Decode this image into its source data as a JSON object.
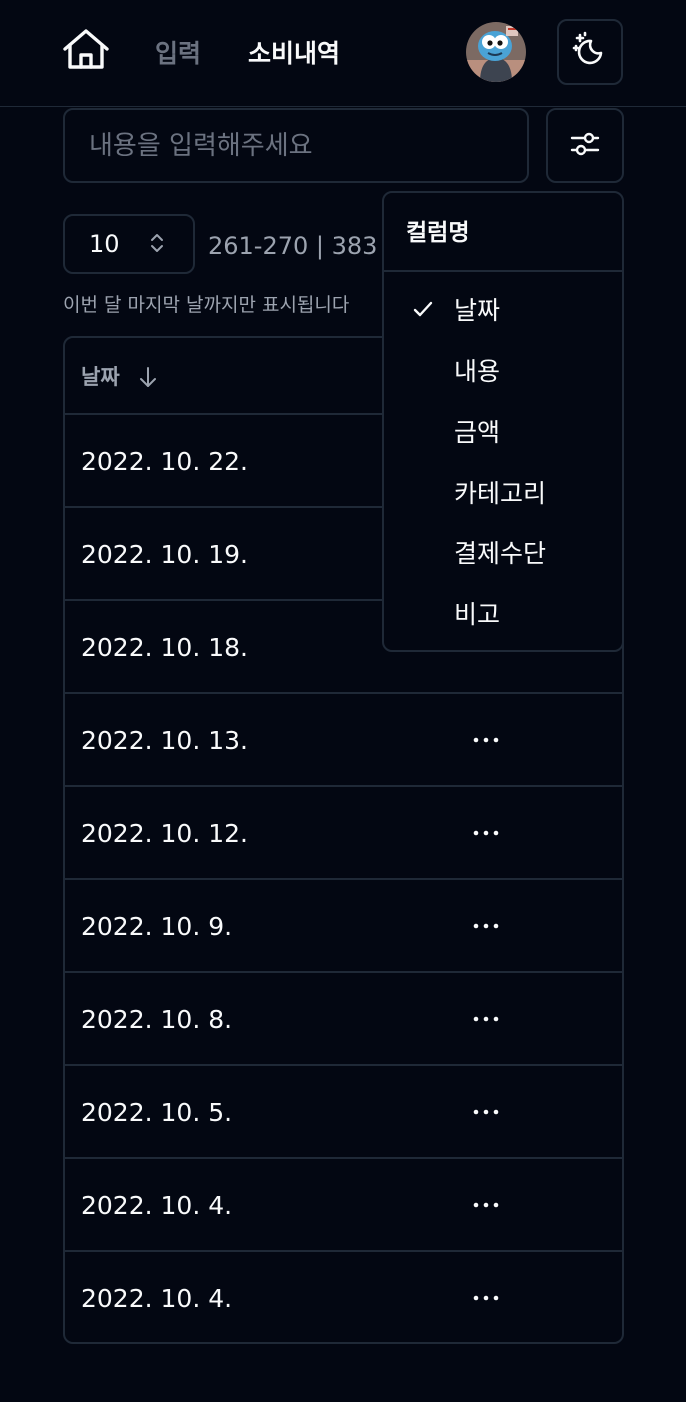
{
  "nav": {
    "input_label": "입력",
    "history_label": "소비내역"
  },
  "search": {
    "placeholder": "내용을 입력해주세요",
    "value": ""
  },
  "pagination": {
    "page_size": "10",
    "range_text": "261-270 | 383"
  },
  "hint": "이번 달 마지막 날까지만 표시됩니다",
  "table": {
    "headers": {
      "date": "날짜"
    },
    "more_label": "···",
    "rows": [
      {
        "date": "2022. 10. 22."
      },
      {
        "date": "2022. 10. 19."
      },
      {
        "date": "2022. 10. 18."
      },
      {
        "date": "2022. 10. 13."
      },
      {
        "date": "2022. 10. 12."
      },
      {
        "date": "2022. 10. 9."
      },
      {
        "date": "2022. 10. 8."
      },
      {
        "date": "2022. 10. 5."
      },
      {
        "date": "2022. 10. 4."
      },
      {
        "date": "2022. 10. 4."
      }
    ]
  },
  "column_menu": {
    "title": "컬럼명",
    "items": [
      {
        "label": "날짜",
        "checked": true
      },
      {
        "label": "내용",
        "checked": false
      },
      {
        "label": "금액",
        "checked": false
      },
      {
        "label": "카테고리",
        "checked": false
      },
      {
        "label": "결제수단",
        "checked": false
      },
      {
        "label": "비고",
        "checked": false
      }
    ]
  },
  "icons": {
    "home": "home-icon",
    "theme": "sparkle-moon-icon",
    "filter": "sliders-icon",
    "sort": "arrow-down-icon",
    "check": "check-icon",
    "more": "ellipsis-icon"
  },
  "colors": {
    "background": "#030712",
    "border": "#1f2937",
    "text": "#f9fafb",
    "muted": "#9ca3af",
    "dim": "#6b7280"
  }
}
